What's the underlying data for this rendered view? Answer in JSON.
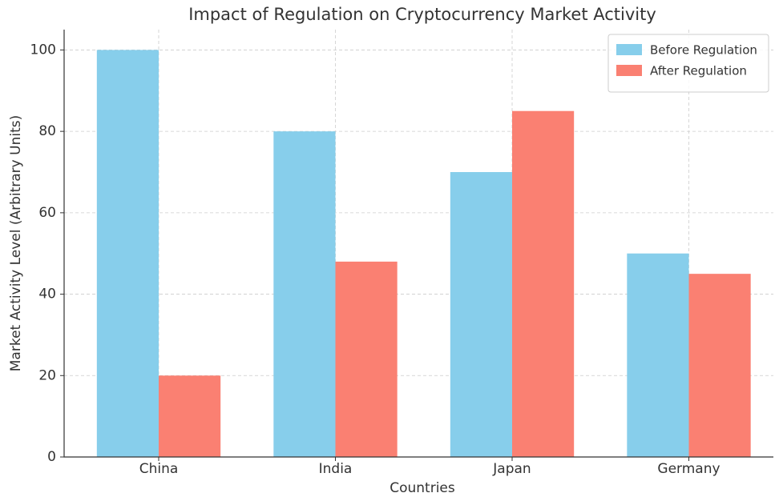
{
  "chart_data": {
    "type": "bar",
    "title": "Impact of Regulation on Cryptocurrency Market Activity",
    "x_label": "Countries",
    "y_label": "Market Activity Level (Arbitrary Units)",
    "categories": [
      "China",
      "India",
      "Japan",
      "Germany"
    ],
    "series": [
      {
        "name": "Before Regulation",
        "color": "#87ceeb",
        "values": [
          100,
          80,
          70,
          50
        ]
      },
      {
        "name": "After Regulation",
        "color": "#fa8072",
        "values": [
          20,
          48,
          85,
          45
        ]
      }
    ],
    "ylim": [
      0,
      105
    ],
    "yticks": [
      0,
      20,
      40,
      60,
      80,
      100
    ],
    "grid": true,
    "legend": "upper right"
  }
}
